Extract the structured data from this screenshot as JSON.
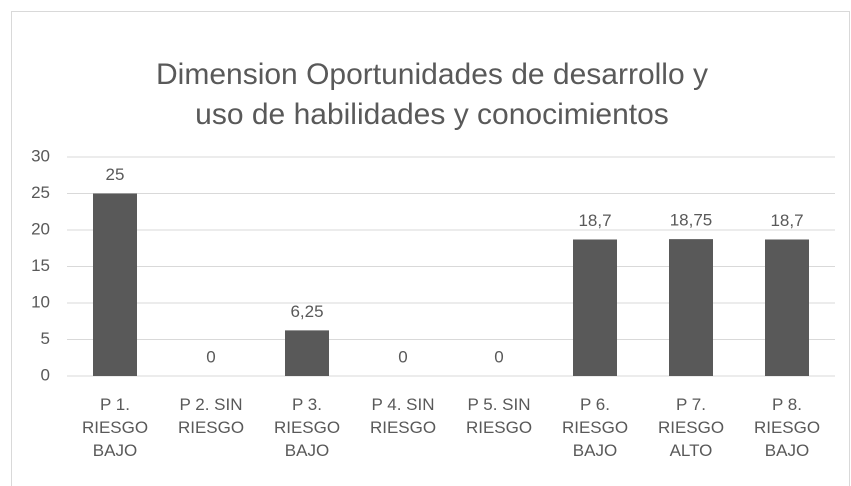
{
  "chart_data": {
    "type": "bar",
    "title": [
      "Dimension Oportunidades de desarrollo y",
      "uso de habilidades y conocimientos"
    ],
    "categories": [
      "P 1. RIESGO BAJO",
      "P 2. SIN RIESGO",
      "P 3. RIESGO BAJO",
      "P 4. SIN RIESGO",
      "P 5. SIN RIESGO",
      "P 6. RIESGO BAJO",
      "P 7. RIESGO ALTO",
      "P 8. RIESGO BAJO"
    ],
    "values": [
      25,
      0,
      6.25,
      0,
      0,
      18.7,
      18.75,
      18.7
    ],
    "value_labels": [
      "25",
      "0",
      "6,25",
      "0",
      "0",
      "18,7",
      "18,75",
      "18,7"
    ],
    "color": "#595959",
    "ylim": [
      0,
      30
    ],
    "yticks": [
      0,
      5,
      10,
      15,
      20,
      25,
      30
    ],
    "grid": true
  }
}
